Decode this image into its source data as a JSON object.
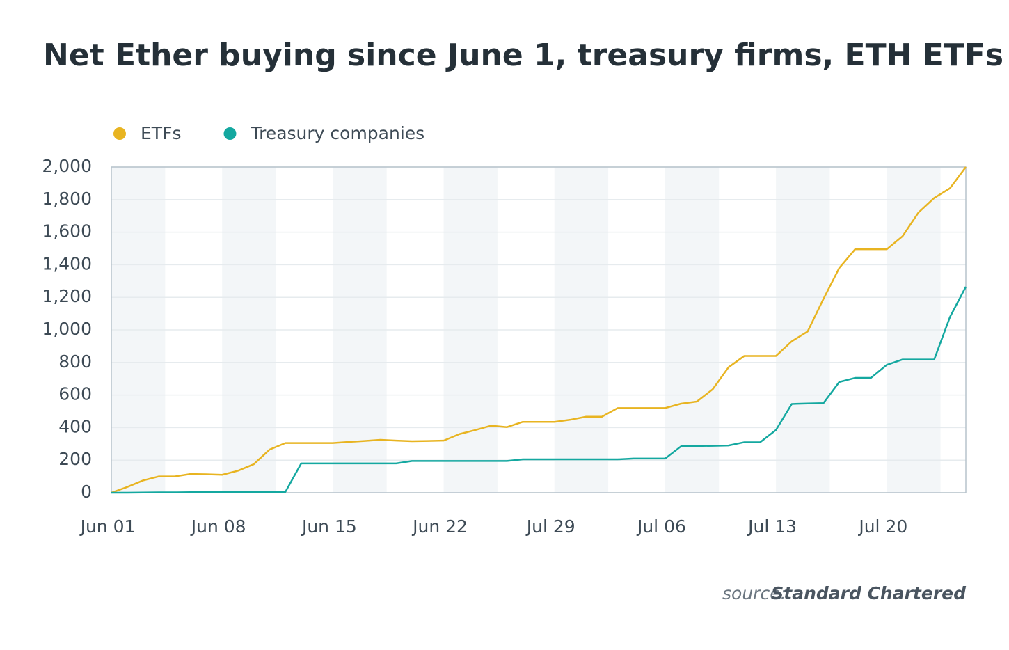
{
  "chart_data": {
    "type": "line",
    "title": "Net Ether buying since June 1, treasury firms, ETH ETFs",
    "source_prefix": "source:",
    "source_name": "Standard Chartered",
    "categories": [
      "Jun 01",
      null,
      null,
      null,
      null,
      null,
      null,
      "Jun 08",
      null,
      null,
      null,
      null,
      null,
      null,
      "Jun 15",
      null,
      null,
      null,
      null,
      null,
      null,
      "Jun 22",
      null,
      null,
      null,
      null,
      null,
      null,
      "Jul 29",
      null,
      null,
      null,
      null,
      null,
      null,
      "Jul 06",
      null,
      null,
      null,
      null,
      null,
      null,
      "Jul 13",
      null,
      null,
      null,
      null,
      null,
      null,
      "Jul 20",
      null,
      null,
      null,
      null,
      null
    ],
    "series": [
      {
        "name": "ETFs",
        "color": "#e8b421",
        "values": [
          0,
          35,
          75,
          100,
          100,
          115,
          113,
          110,
          135,
          175,
          265,
          305,
          305,
          305,
          305,
          312,
          318,
          325,
          320,
          316,
          318,
          320,
          360,
          385,
          412,
          403,
          435,
          435,
          435,
          448,
          467,
          467,
          520,
          520,
          520,
          520,
          547,
          560,
          635,
          770,
          840,
          840,
          840,
          930,
          990,
          1190,
          1380,
          1495,
          1495,
          1495,
          1575,
          1720,
          1810,
          1870,
          2000
        ]
      },
      {
        "name": "Treasury companies",
        "color": "#14a8a0",
        "values": [
          0,
          0,
          1,
          2,
          2,
          3,
          3,
          4,
          4,
          4,
          5,
          5,
          180,
          180,
          180,
          180,
          180,
          180,
          180,
          195,
          195,
          195,
          195,
          195,
          195,
          195,
          205,
          205,
          205,
          205,
          205,
          205,
          205,
          210,
          210,
          210,
          285,
          287,
          288,
          290,
          310,
          310,
          385,
          545,
          548,
          550,
          680,
          705,
          705,
          785,
          818,
          818,
          818,
          1080,
          1265
        ]
      }
    ],
    "ylim": [
      0,
      2000
    ],
    "yticks": [
      0,
      200,
      400,
      600,
      800,
      {
        "value": 1000,
        "label": "1,000"
      },
      {
        "value": 1200,
        "label": "1,200"
      },
      {
        "value": 1400,
        "label": "1,400"
      },
      {
        "value": 1600,
        "label": "1,600"
      },
      {
        "value": 1800,
        "label": "1,800"
      },
      {
        "value": 2000,
        "label": "2,000"
      }
    ],
    "grid": true
  }
}
